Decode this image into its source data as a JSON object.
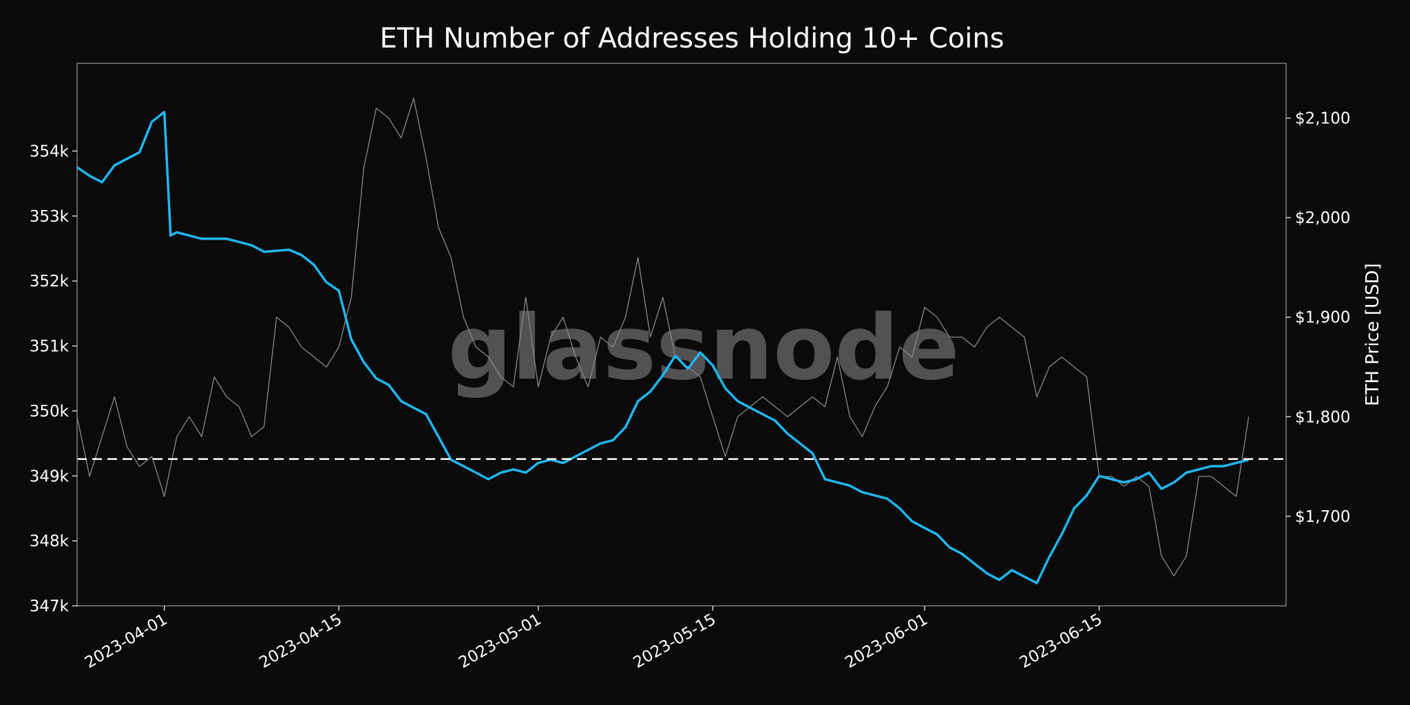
{
  "chart_data": {
    "type": "line",
    "title": "ETH Number of Addresses Holding 10+ Coins",
    "watermark": "glassnode",
    "x_ticks": [
      "2023-04-01",
      "2023-04-15",
      "2023-05-01",
      "2023-05-15",
      "2023-06-01",
      "2023-06-15"
    ],
    "xlim": [
      "2023-03-25",
      "2023-06-30"
    ],
    "y_left": {
      "label": "",
      "ticks": [
        "347k",
        "348k",
        "349k",
        "350k",
        "351k",
        "352k",
        "353k",
        "354k"
      ],
      "ylim": [
        347000,
        355350
      ]
    },
    "y_right": {
      "label": "ETH Price [USD]",
      "ticks": [
        "$1,700",
        "$1,800",
        "$1,900",
        "$2,000",
        "$2,100"
      ],
      "ylim": [
        1610,
        2155
      ]
    },
    "reference_line": {
      "axis": "left",
      "value": 349260,
      "style": "dashed",
      "color": "#ffffff"
    },
    "colors": {
      "background": "#0b0b0b",
      "addresses": "#1fb7f0",
      "price": "#8a8a8a",
      "frame": "#808080"
    },
    "series": [
      {
        "axis": "left",
        "color": "#1fb7f0",
        "points": [
          [
            "2023-03-25",
            353750
          ],
          [
            "2023-03-26",
            353620
          ],
          [
            "2023-03-27",
            353520
          ],
          [
            "2023-03-28",
            353780
          ],
          [
            "2023-03-29",
            353880
          ],
          [
            "2023-03-30",
            353980
          ],
          [
            "2023-03-31",
            354450
          ],
          [
            "2023-04-01",
            354600
          ],
          [
            "2023-04-01T12:00",
            352700
          ],
          [
            "2023-04-02",
            352750
          ],
          [
            "2023-04-04",
            352650
          ],
          [
            "2023-04-06",
            352650
          ],
          [
            "2023-04-08",
            352550
          ],
          [
            "2023-04-09",
            352450
          ],
          [
            "2023-04-11",
            352480
          ],
          [
            "2023-04-12",
            352400
          ],
          [
            "2023-04-13",
            352250
          ],
          [
            "2023-04-14",
            351980
          ],
          [
            "2023-04-15",
            351850
          ],
          [
            "2023-04-16",
            351100
          ],
          [
            "2023-04-17",
            350750
          ],
          [
            "2023-04-18",
            350500
          ],
          [
            "2023-04-19",
            350400
          ],
          [
            "2023-04-20",
            350150
          ],
          [
            "2023-04-21",
            350050
          ],
          [
            "2023-04-22",
            349950
          ],
          [
            "2023-04-23",
            349600
          ],
          [
            "2023-04-24",
            349250
          ],
          [
            "2023-04-25",
            349150
          ],
          [
            "2023-04-26",
            349050
          ],
          [
            "2023-04-27",
            348950
          ],
          [
            "2023-04-28",
            349050
          ],
          [
            "2023-04-29",
            349100
          ],
          [
            "2023-04-30",
            349050
          ],
          [
            "2023-05-01",
            349200
          ],
          [
            "2023-05-02",
            349250
          ],
          [
            "2023-05-03",
            349200
          ],
          [
            "2023-05-04",
            349300
          ],
          [
            "2023-05-05",
            349400
          ],
          [
            "2023-05-06",
            349500
          ],
          [
            "2023-05-07",
            349550
          ],
          [
            "2023-05-08",
            349750
          ],
          [
            "2023-05-09",
            350150
          ],
          [
            "2023-05-10",
            350300
          ],
          [
            "2023-05-11",
            350550
          ],
          [
            "2023-05-12",
            350850
          ],
          [
            "2023-05-13",
            350650
          ],
          [
            "2023-05-14",
            350900
          ],
          [
            "2023-05-15",
            350700
          ],
          [
            "2023-05-16",
            350350
          ],
          [
            "2023-05-17",
            350150
          ],
          [
            "2023-05-18",
            350050
          ],
          [
            "2023-05-19",
            349950
          ],
          [
            "2023-05-20",
            349850
          ],
          [
            "2023-05-21",
            349650
          ],
          [
            "2023-05-22",
            349500
          ],
          [
            "2023-05-23",
            349350
          ],
          [
            "2023-05-24",
            348950
          ],
          [
            "2023-05-25",
            348900
          ],
          [
            "2023-05-26",
            348850
          ],
          [
            "2023-05-27",
            348750
          ],
          [
            "2023-05-28",
            348700
          ],
          [
            "2023-05-29",
            348650
          ],
          [
            "2023-05-30",
            348500
          ],
          [
            "2023-05-31",
            348300
          ],
          [
            "2023-06-01",
            348200
          ],
          [
            "2023-06-02",
            348100
          ],
          [
            "2023-06-03",
            347900
          ],
          [
            "2023-06-04",
            347800
          ],
          [
            "2023-06-05",
            347650
          ],
          [
            "2023-06-06",
            347500
          ],
          [
            "2023-06-07",
            347400
          ],
          [
            "2023-06-08",
            347550
          ],
          [
            "2023-06-09",
            347450
          ],
          [
            "2023-06-10",
            347350
          ],
          [
            "2023-06-11",
            347750
          ],
          [
            "2023-06-12",
            348100
          ],
          [
            "2023-06-13",
            348500
          ],
          [
            "2023-06-14",
            348700
          ],
          [
            "2023-06-15",
            349000
          ],
          [
            "2023-06-16",
            348950
          ],
          [
            "2023-06-17",
            348900
          ],
          [
            "2023-06-18",
            348950
          ],
          [
            "2023-06-19",
            349050
          ],
          [
            "2023-06-20",
            348800
          ],
          [
            "2023-06-21",
            348900
          ],
          [
            "2023-06-22",
            349050
          ],
          [
            "2023-06-23",
            349100
          ],
          [
            "2023-06-24",
            349150
          ],
          [
            "2023-06-25",
            349150
          ],
          [
            "2023-06-26",
            349200
          ],
          [
            "2023-06-27",
            349250
          ]
        ]
      },
      {
        "axis": "right",
        "color": "#8a8a8a",
        "points": [
          [
            "2023-03-25",
            1800
          ],
          [
            "2023-03-26",
            1740
          ],
          [
            "2023-03-27",
            1780
          ],
          [
            "2023-03-28",
            1820
          ],
          [
            "2023-03-29",
            1770
          ],
          [
            "2023-03-30",
            1750
          ],
          [
            "2023-03-31",
            1760
          ],
          [
            "2023-04-01",
            1720
          ],
          [
            "2023-04-02",
            1780
          ],
          [
            "2023-04-03",
            1800
          ],
          [
            "2023-04-04",
            1780
          ],
          [
            "2023-04-05",
            1840
          ],
          [
            "2023-04-06",
            1820
          ],
          [
            "2023-04-07",
            1810
          ],
          [
            "2023-04-08",
            1780
          ],
          [
            "2023-04-09",
            1790
          ],
          [
            "2023-04-10",
            1900
          ],
          [
            "2023-04-11",
            1890
          ],
          [
            "2023-04-12",
            1870
          ],
          [
            "2023-04-13",
            1860
          ],
          [
            "2023-04-14",
            1850
          ],
          [
            "2023-04-15",
            1870
          ],
          [
            "2023-04-16",
            1920
          ],
          [
            "2023-04-17",
            2050
          ],
          [
            "2023-04-18",
            2110
          ],
          [
            "2023-04-19",
            2100
          ],
          [
            "2023-04-20",
            2080
          ],
          [
            "2023-04-21",
            2120
          ],
          [
            "2023-04-22",
            2060
          ],
          [
            "2023-04-23",
            1990
          ],
          [
            "2023-04-24",
            1960
          ],
          [
            "2023-04-25",
            1900
          ],
          [
            "2023-04-26",
            1870
          ],
          [
            "2023-04-27",
            1860
          ],
          [
            "2023-04-28",
            1840
          ],
          [
            "2023-04-29",
            1830
          ],
          [
            "2023-04-30",
            1920
          ],
          [
            "2023-05-01",
            1830
          ],
          [
            "2023-05-02",
            1880
          ],
          [
            "2023-05-03",
            1900
          ],
          [
            "2023-05-04",
            1860
          ],
          [
            "2023-05-05",
            1830
          ],
          [
            "2023-05-06",
            1880
          ],
          [
            "2023-05-07",
            1870
          ],
          [
            "2023-05-08",
            1900
          ],
          [
            "2023-05-09",
            1960
          ],
          [
            "2023-05-10",
            1880
          ],
          [
            "2023-05-11",
            1920
          ],
          [
            "2023-05-12",
            1860
          ],
          [
            "2023-05-13",
            1850
          ],
          [
            "2023-05-14",
            1840
          ],
          [
            "2023-05-15",
            1800
          ],
          [
            "2023-05-16",
            1760
          ],
          [
            "2023-05-17",
            1800
          ],
          [
            "2023-05-18",
            1810
          ],
          [
            "2023-05-19",
            1820
          ],
          [
            "2023-05-20",
            1810
          ],
          [
            "2023-05-21",
            1800
          ],
          [
            "2023-05-22",
            1810
          ],
          [
            "2023-05-23",
            1820
          ],
          [
            "2023-05-24",
            1810
          ],
          [
            "2023-05-25",
            1860
          ],
          [
            "2023-05-26",
            1800
          ],
          [
            "2023-05-27",
            1780
          ],
          [
            "2023-05-28",
            1810
          ],
          [
            "2023-05-29",
            1830
          ],
          [
            "2023-05-30",
            1870
          ],
          [
            "2023-05-31",
            1860
          ],
          [
            "2023-06-01",
            1910
          ],
          [
            "2023-06-02",
            1900
          ],
          [
            "2023-06-03",
            1880
          ],
          [
            "2023-06-04",
            1880
          ],
          [
            "2023-06-05",
            1870
          ],
          [
            "2023-06-06",
            1890
          ],
          [
            "2023-06-07",
            1900
          ],
          [
            "2023-06-08",
            1890
          ],
          [
            "2023-06-09",
            1880
          ],
          [
            "2023-06-10",
            1820
          ],
          [
            "2023-06-11",
            1850
          ],
          [
            "2023-06-12",
            1860
          ],
          [
            "2023-06-13",
            1850
          ],
          [
            "2023-06-14",
            1840
          ],
          [
            "2023-06-15",
            1740
          ],
          [
            "2023-06-16",
            1740
          ],
          [
            "2023-06-17",
            1730
          ],
          [
            "2023-06-18",
            1740
          ],
          [
            "2023-06-19",
            1730
          ],
          [
            "2023-06-20",
            1660
          ],
          [
            "2023-06-21",
            1640
          ],
          [
            "2023-06-22",
            1660
          ],
          [
            "2023-06-23",
            1740
          ],
          [
            "2023-06-24",
            1740
          ],
          [
            "2023-06-25",
            1730
          ],
          [
            "2023-06-26",
            1720
          ],
          [
            "2023-06-27",
            1800
          ]
        ]
      }
    ]
  }
}
